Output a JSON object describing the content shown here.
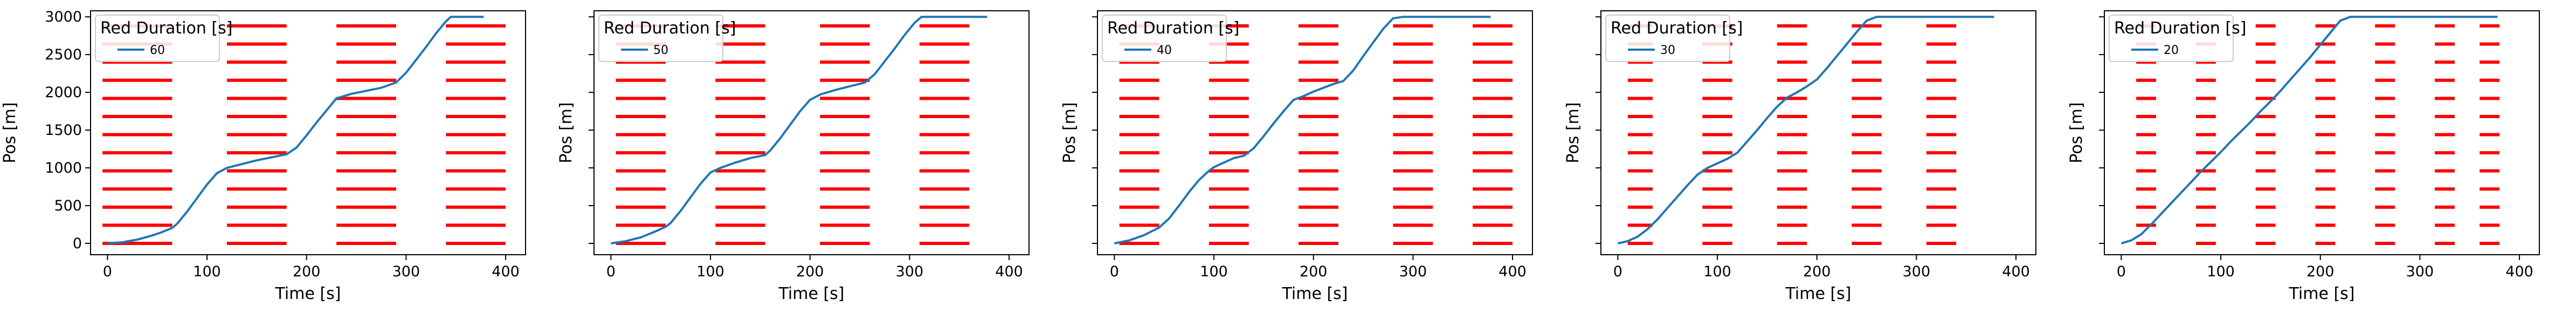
{
  "chart_data": [
    {
      "type": "line",
      "xlabel": "Time [s]",
      "ylabel": "Pos [m]",
      "xlim": [
        -17,
        420
      ],
      "ylim": [
        -150,
        3080
      ],
      "xticks": [
        0,
        100,
        200,
        300,
        400
      ],
      "yticks": [
        0,
        500,
        1000,
        1500,
        2000,
        2500,
        3000
      ],
      "show_yticklabels": true,
      "legend": {
        "title": "Red Duration [s]",
        "location": "upper left"
      },
      "series": [
        {
          "name": "60",
          "color": "#1f77b4",
          "x": [
            0,
            15,
            30,
            45,
            55,
            65,
            70,
            80,
            90,
            100,
            110,
            120,
            135,
            150,
            165,
            180,
            190,
            200,
            210,
            220,
            230,
            245,
            260,
            275,
            290,
            300,
            310,
            320,
            330,
            340,
            345,
            360,
            370,
            378
          ],
          "y": [
            0,
            15,
            50,
            105,
            150,
            205,
            260,
            420,
            600,
            780,
            930,
            1000,
            1050,
            1100,
            1140,
            1180,
            1270,
            1430,
            1600,
            1760,
            1920,
            1980,
            2020,
            2060,
            2130,
            2260,
            2430,
            2600,
            2780,
            2940,
            3000,
            3000,
            3000,
            3000
          ]
        }
      ],
      "red_phases": [
        {
          "x0": -5,
          "x1": 65
        },
        {
          "x0": 120,
          "x1": 180
        },
        {
          "x0": 230,
          "x1": 290
        },
        {
          "x0": 340,
          "x1": 400
        }
      ],
      "red_levels": [
        0,
        240,
        480,
        720,
        960,
        1200,
        1440,
        1680,
        1920,
        2160,
        2400,
        2640,
        2880
      ]
    },
    {
      "type": "line",
      "xlabel": "Time [s]",
      "ylabel": "Pos [m]",
      "xlim": [
        -17,
        420
      ],
      "ylim": [
        -150,
        3080
      ],
      "xticks": [
        0,
        100,
        200,
        300,
        400
      ],
      "yticks": [
        0,
        500,
        1000,
        1500,
        2000,
        2500,
        3000
      ],
      "show_yticklabels": false,
      "legend": {
        "title": "Red Duration [s]",
        "location": "upper left"
      },
      "series": [
        {
          "name": "50",
          "color": "#1f77b4",
          "x": [
            0,
            15,
            30,
            45,
            55,
            60,
            70,
            80,
            90,
            100,
            110,
            125,
            140,
            155,
            160,
            170,
            180,
            190,
            200,
            210,
            225,
            240,
            255,
            265,
            275,
            285,
            295,
            305,
            312,
            330,
            350,
            378
          ],
          "y": [
            0,
            30,
            80,
            160,
            220,
            270,
            430,
            610,
            790,
            940,
            1000,
            1070,
            1130,
            1170,
            1230,
            1390,
            1570,
            1750,
            1900,
            1970,
            2030,
            2080,
            2130,
            2240,
            2410,
            2580,
            2760,
            2920,
            3000,
            3000,
            3000,
            3000
          ]
        }
      ],
      "red_phases": [
        {
          "x0": 5,
          "x1": 55
        },
        {
          "x0": 105,
          "x1": 155
        },
        {
          "x0": 210,
          "x1": 260
        },
        {
          "x0": 310,
          "x1": 360
        }
      ],
      "red_levels": [
        0,
        240,
        480,
        720,
        960,
        1200,
        1440,
        1680,
        1920,
        2160,
        2400,
        2640,
        2880
      ]
    },
    {
      "type": "line",
      "xlabel": "Time [s]",
      "ylabel": "Pos [m]",
      "xlim": [
        -17,
        420
      ],
      "ylim": [
        -150,
        3080
      ],
      "xticks": [
        0,
        100,
        200,
        300,
        400
      ],
      "yticks": [
        0,
        500,
        1000,
        1500,
        2000,
        2500,
        3000
      ],
      "show_yticklabels": false,
      "legend": {
        "title": "Red Duration [s]",
        "location": "upper left"
      },
      "series": [
        {
          "name": "40",
          "color": "#1f77b4",
          "x": [
            0,
            15,
            30,
            45,
            55,
            65,
            75,
            85,
            95,
            100,
            110,
            120,
            130,
            140,
            150,
            160,
            170,
            180,
            190,
            200,
            210,
            220,
            230,
            240,
            250,
            260,
            270,
            280,
            290,
            310,
            340,
            378
          ],
          "y": [
            0,
            40,
            110,
            210,
            330,
            500,
            680,
            840,
            960,
            1010,
            1070,
            1130,
            1160,
            1260,
            1420,
            1590,
            1750,
            1900,
            1950,
            2010,
            2060,
            2110,
            2150,
            2290,
            2480,
            2660,
            2840,
            2980,
            3000,
            3000,
            3000,
            3000
          ]
        }
      ],
      "red_phases": [
        {
          "x0": 5,
          "x1": 45
        },
        {
          "x0": 95,
          "x1": 135
        },
        {
          "x0": 185,
          "x1": 225
        },
        {
          "x0": 280,
          "x1": 320
        },
        {
          "x0": 360,
          "x1": 400
        }
      ],
      "red_levels": [
        0,
        240,
        480,
        720,
        960,
        1200,
        1440,
        1680,
        1920,
        2160,
        2400,
        2640,
        2880
      ]
    },
    {
      "type": "line",
      "xlabel": "Time [s]",
      "ylabel": "Pos [m]",
      "xlim": [
        -17,
        420
      ],
      "ylim": [
        -150,
        3080
      ],
      "xticks": [
        0,
        100,
        200,
        300,
        400
      ],
      "yticks": [
        0,
        500,
        1000,
        1500,
        2000,
        2500,
        3000
      ],
      "show_yticklabels": false,
      "legend": {
        "title": "Red Duration [s]",
        "location": "upper left"
      },
      "series": [
        {
          "name": "30",
          "color": "#1f77b4",
          "x": [
            0,
            10,
            20,
            30,
            40,
            50,
            60,
            70,
            80,
            90,
            100,
            110,
            120,
            130,
            140,
            150,
            160,
            170,
            180,
            190,
            200,
            210,
            220,
            230,
            240,
            250,
            260,
            280,
            300,
            340,
            378
          ],
          "y": [
            0,
            30,
            90,
            190,
            320,
            470,
            620,
            770,
            910,
            1000,
            1060,
            1120,
            1200,
            1350,
            1500,
            1660,
            1810,
            1930,
            2000,
            2080,
            2170,
            2320,
            2480,
            2640,
            2800,
            2950,
            3000,
            3000,
            3000,
            3000,
            3000
          ]
        }
      ],
      "red_phases": [
        {
          "x0": 10,
          "x1": 35
        },
        {
          "x0": 85,
          "x1": 115
        },
        {
          "x0": 160,
          "x1": 190
        },
        {
          "x0": 235,
          "x1": 265
        },
        {
          "x0": 310,
          "x1": 340
        }
      ],
      "red_levels": [
        0,
        240,
        480,
        720,
        960,
        1200,
        1440,
        1680,
        1920,
        2160,
        2400,
        2640,
        2880
      ]
    },
    {
      "type": "line",
      "xlabel": "Time [s]",
      "ylabel": "Pos [m]",
      "xlim": [
        -17,
        420
      ],
      "ylim": [
        -150,
        3080
      ],
      "xticks": [
        0,
        100,
        200,
        300,
        400
      ],
      "yticks": [
        0,
        500,
        1000,
        1500,
        2000,
        2500,
        3000
      ],
      "show_yticklabels": false,
      "legend": {
        "title": "Red Duration [s]",
        "location": "upper left"
      },
      "series": [
        {
          "name": "20",
          "color": "#1f77b4",
          "x": [
            0,
            10,
            20,
            30,
            40,
            50,
            60,
            70,
            80,
            90,
            100,
            110,
            120,
            130,
            140,
            150,
            160,
            170,
            180,
            190,
            200,
            210,
            220,
            230,
            260,
            300,
            340,
            378
          ],
          "y": [
            0,
            40,
            120,
            250,
            390,
            530,
            670,
            810,
            950,
            1080,
            1210,
            1350,
            1480,
            1610,
            1750,
            1880,
            2020,
            2170,
            2320,
            2470,
            2630,
            2790,
            2950,
            3000,
            3000,
            3000,
            3000,
            3000
          ]
        }
      ],
      "red_phases": [
        {
          "x0": 15,
          "x1": 35
        },
        {
          "x0": 75,
          "x1": 95
        },
        {
          "x0": 135,
          "x1": 155
        },
        {
          "x0": 195,
          "x1": 215
        },
        {
          "x0": 255,
          "x1": 275
        },
        {
          "x0": 315,
          "x1": 335
        },
        {
          "x0": 360,
          "x1": 380
        }
      ],
      "red_levels": [
        0,
        240,
        480,
        720,
        960,
        1200,
        1440,
        1680,
        1920,
        2160,
        2400,
        2640,
        2880
      ]
    }
  ]
}
